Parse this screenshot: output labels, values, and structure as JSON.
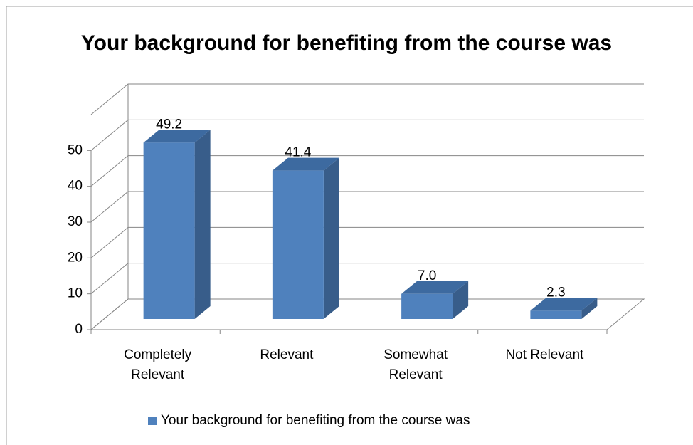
{
  "chart_data": {
    "type": "bar",
    "title": "Your background for benefiting from the course was",
    "categories": [
      "Completely Relevant",
      "Relevant",
      "Somewhat Relevant",
      "Not Relevant"
    ],
    "series": [
      {
        "name": "Your background for benefiting from the course was",
        "color": "#4f81bd",
        "values": [
          49.2,
          41.4,
          7.0,
          2.3
        ],
        "value_labels": [
          "49.2",
          "41.4",
          "7.0",
          "2.3"
        ]
      }
    ],
    "ylim": [
      0,
      60
    ],
    "yticks": [
      0,
      10,
      20,
      30,
      40,
      50
    ],
    "grid": true,
    "legend": "bottom"
  }
}
